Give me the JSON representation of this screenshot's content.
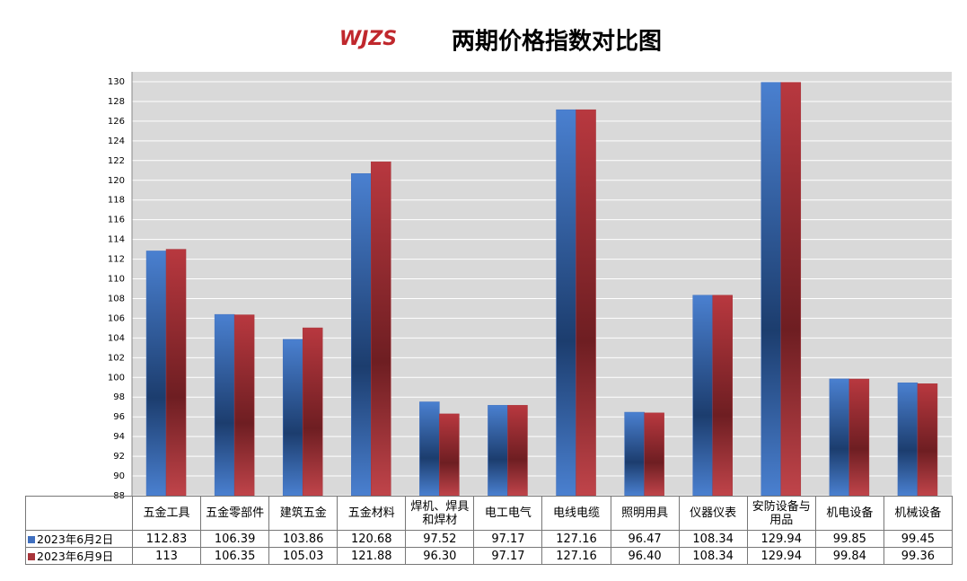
{
  "logo": "WJZS",
  "chart_data": {
    "type": "bar",
    "title": "两期价格指数对比图",
    "categories": [
      "五金工具",
      "五金零部件",
      "建筑五金",
      "五金材料",
      "焊机、焊具和焊材",
      "电工电气",
      "电线电缆",
      "照明用具",
      "仪器仪表",
      "安防设备与用品",
      "机电设备",
      "机械设备"
    ],
    "series": [
      {
        "name": "2023年6月2日",
        "color": "#3f6fbf",
        "values": [
          112.83,
          106.39,
          103.86,
          120.68,
          97.52,
          97.17,
          127.16,
          96.47,
          108.34,
          129.94,
          99.85,
          99.45
        ],
        "value_labels": [
          "112.83",
          "106.39",
          "103.86",
          "120.68",
          "97.52",
          "97.17",
          "127.16",
          "96.47",
          "108.34",
          "129.94",
          "99.85",
          "99.45"
        ]
      },
      {
        "name": "2023年6月9日",
        "color": "#a8343a",
        "values": [
          113,
          106.35,
          105.03,
          121.88,
          96.3,
          97.17,
          127.16,
          96.4,
          108.34,
          129.94,
          99.84,
          99.36
        ],
        "value_labels": [
          "113",
          "106.35",
          "105.03",
          "121.88",
          "96.30",
          "97.17",
          "127.16",
          "96.40",
          "108.34",
          "129.94",
          "99.84",
          "99.36"
        ]
      }
    ],
    "ylim": [
      88,
      130
    ],
    "yticks": [
      88,
      90,
      92,
      94,
      96,
      98,
      100,
      102,
      104,
      106,
      108,
      110,
      112,
      114,
      116,
      118,
      120,
      122,
      124,
      126,
      128,
      130
    ],
    "grid": true
  }
}
